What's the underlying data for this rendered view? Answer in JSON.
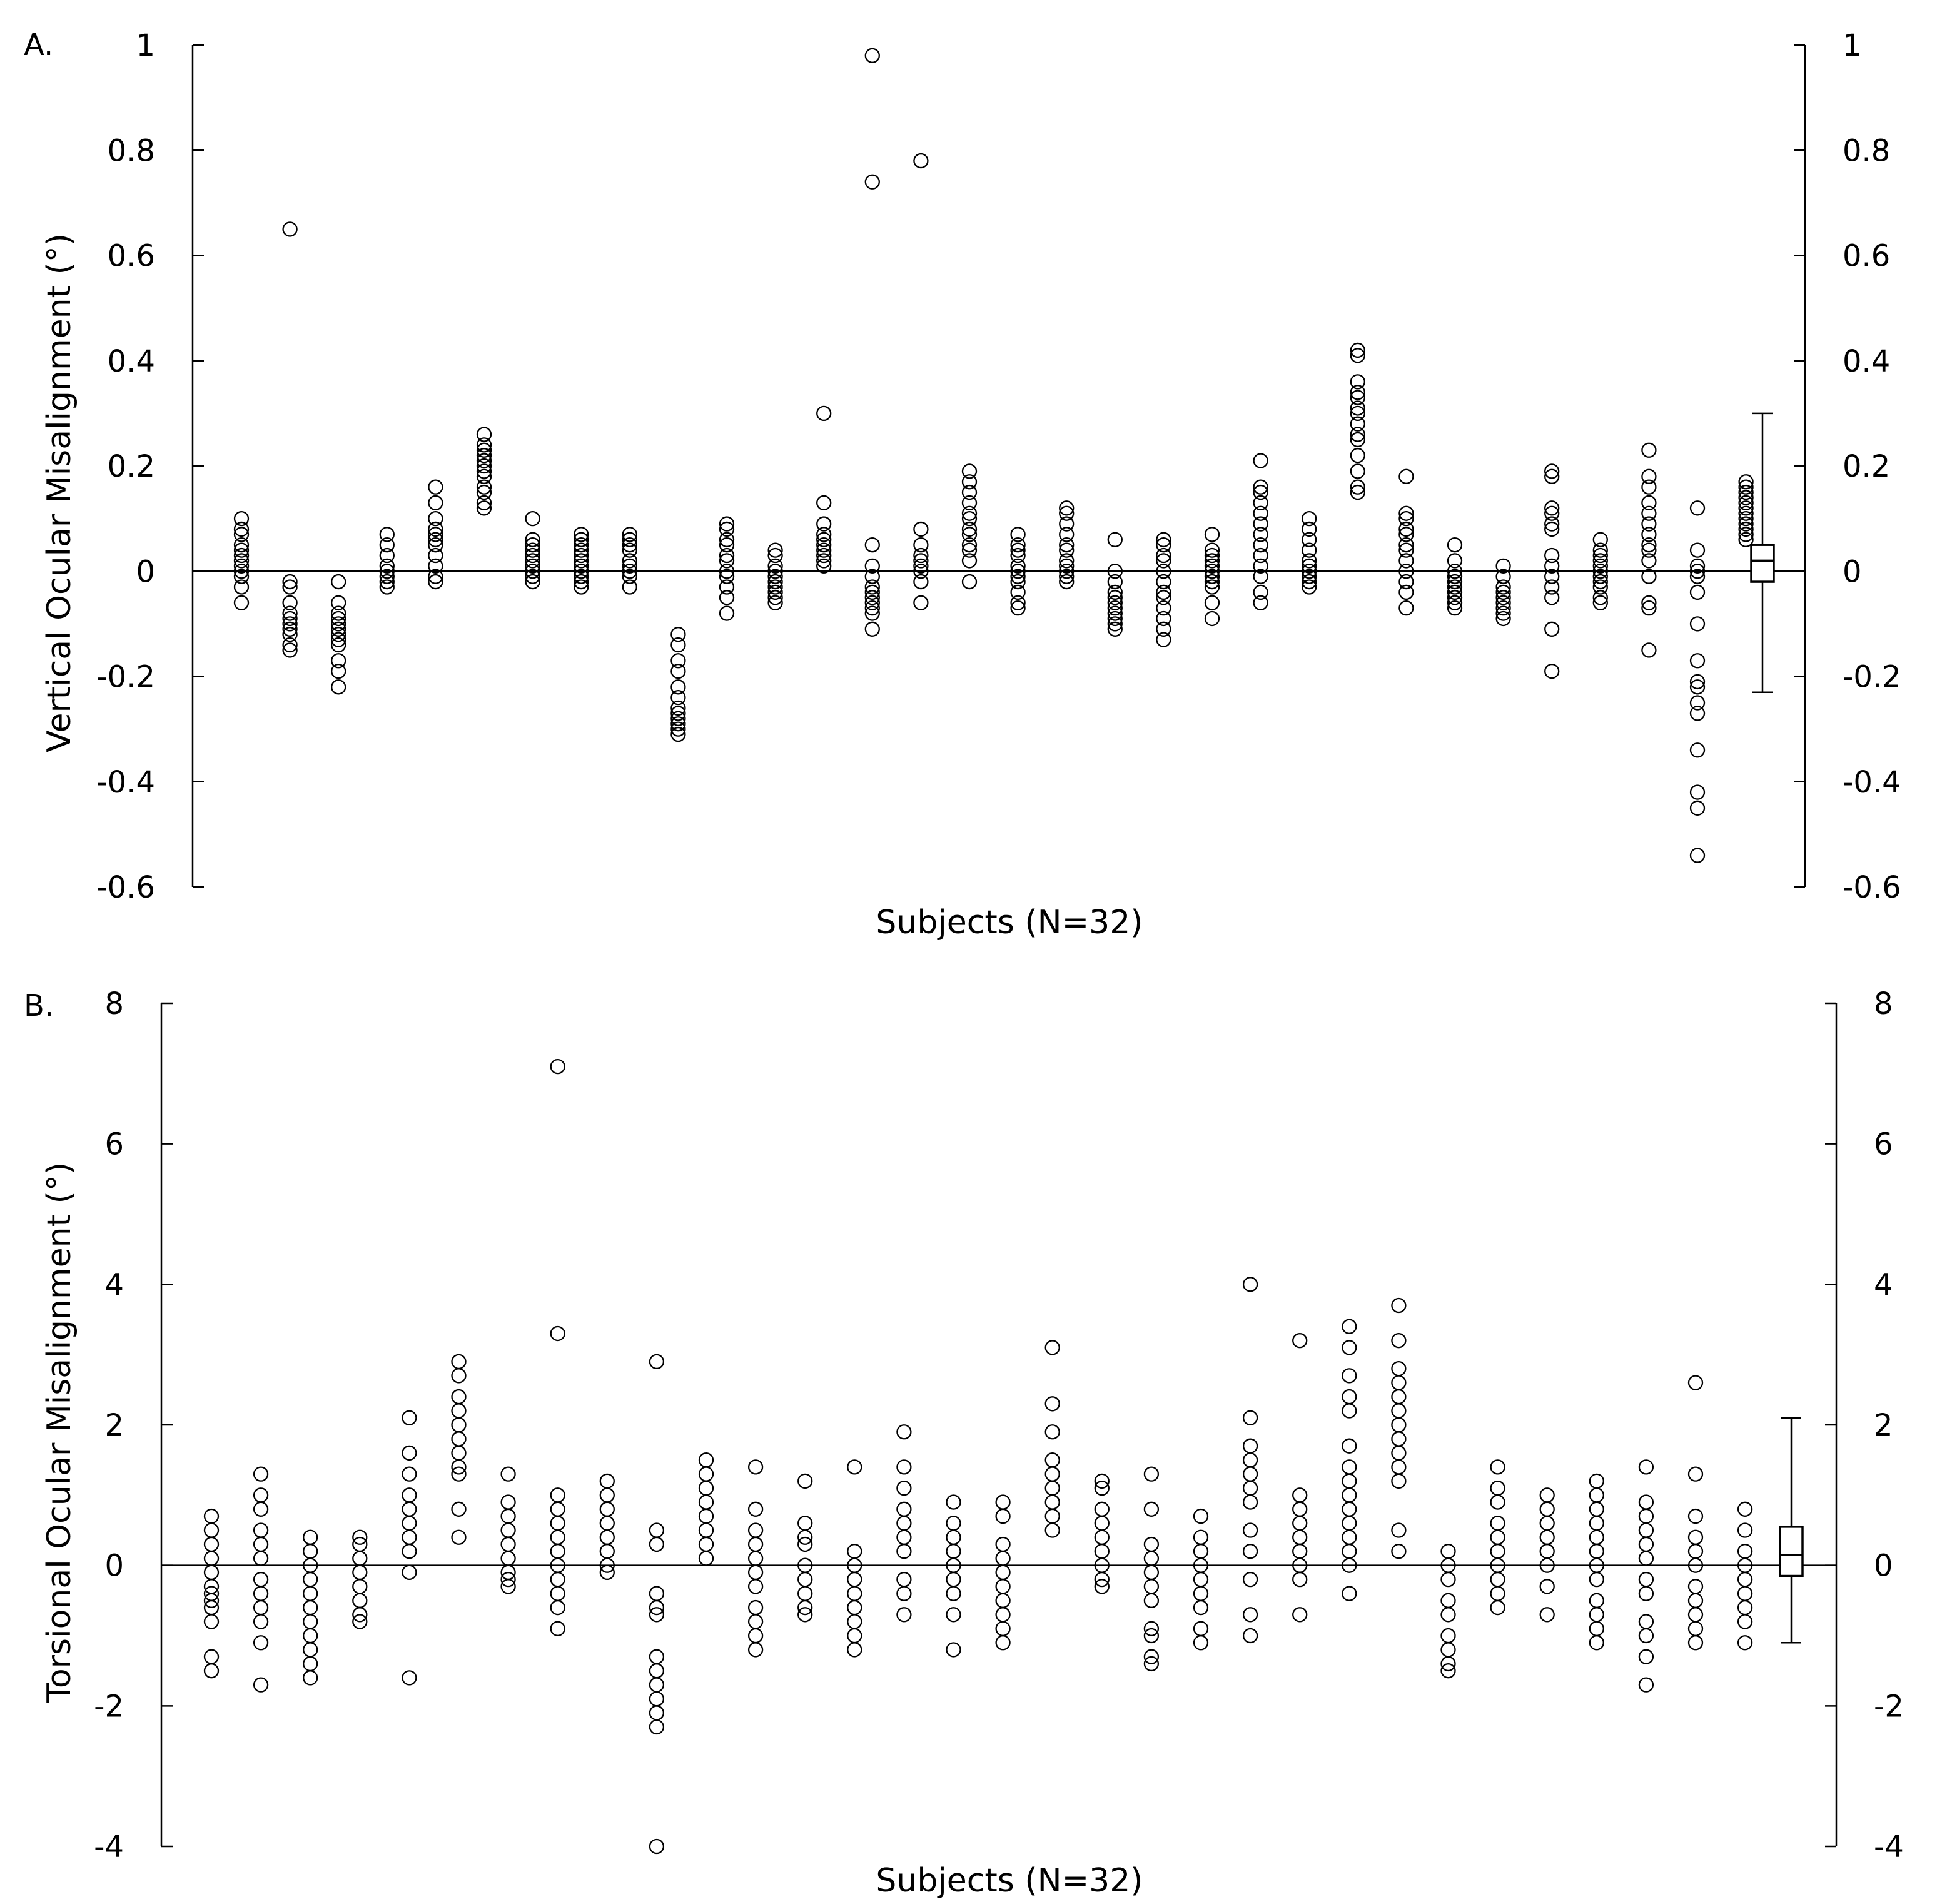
{
  "chart_data": [
    {
      "type": "scatter",
      "panel_label": "A.",
      "ylabel": "Vertical Ocular Misalignment (°)",
      "xlabel": "Subjects (N=32)",
      "ylim": [
        -0.6,
        1
      ],
      "yticks": [
        "1",
        "0.8",
        "0.6",
        "0.4",
        "0.2",
        "0",
        "-0.2",
        "-0.4",
        "-0.6"
      ],
      "ytick_values": [
        1,
        0.8,
        0.6,
        0.4,
        0.2,
        0,
        -0.2,
        -0.4,
        -0.6
      ],
      "subjects": [
        [
          0.1,
          0.08,
          0.07,
          0.05,
          0.04,
          0.03,
          0.02,
          0.01,
          0.0,
          -0.01,
          -0.03,
          -0.06
        ],
        [
          0.65,
          -0.02,
          -0.03,
          -0.06,
          -0.08,
          -0.09,
          -0.1,
          -0.11,
          -0.12,
          -0.14,
          -0.15
        ],
        [
          -0.02,
          -0.06,
          -0.08,
          -0.09,
          -0.1,
          -0.11,
          -0.12,
          -0.13,
          -0.14,
          -0.17,
          -0.19,
          -0.22
        ],
        [
          0.07,
          0.05,
          0.03,
          0.01,
          0.0,
          -0.01,
          -0.02,
          -0.03
        ],
        [
          0.16,
          0.13,
          0.1,
          0.08,
          0.07,
          0.06,
          0.05,
          0.03,
          0.01,
          -0.01,
          -0.02
        ],
        [
          0.26,
          0.24,
          0.23,
          0.22,
          0.21,
          0.2,
          0.19,
          0.18,
          0.16,
          0.15,
          0.13,
          0.12
        ],
        [
          0.1,
          0.06,
          0.05,
          0.04,
          0.03,
          0.02,
          0.01,
          0.0,
          -0.01,
          -0.02
        ],
        [
          0.07,
          0.06,
          0.05,
          0.04,
          0.03,
          0.02,
          0.01,
          0.0,
          -0.01,
          -0.02,
          -0.03
        ],
        [
          0.07,
          0.06,
          0.05,
          0.04,
          0.02,
          0.01,
          0.0,
          -0.01,
          -0.03
        ],
        [
          -0.12,
          -0.14,
          -0.17,
          -0.19,
          -0.22,
          -0.24,
          -0.26,
          -0.27,
          -0.28,
          -0.29,
          -0.3,
          -0.31
        ],
        [
          0.09,
          0.08,
          0.06,
          0.05,
          0.03,
          0.02,
          0.0,
          -0.01,
          -0.03,
          -0.05,
          -0.08
        ],
        [
          0.04,
          0.03,
          0.01,
          0.0,
          -0.01,
          -0.02,
          -0.03,
          -0.04,
          -0.05,
          -0.06
        ],
        [
          0.3,
          0.13,
          0.09,
          0.07,
          0.06,
          0.05,
          0.04,
          0.03,
          0.02,
          0.01
        ],
        [
          0.98,
          0.74,
          0.05,
          0.01,
          -0.01,
          -0.03,
          -0.04,
          -0.05,
          -0.06,
          -0.07,
          -0.08,
          -0.11
        ],
        [
          0.78,
          0.08,
          0.05,
          0.03,
          0.02,
          0.01,
          0.0,
          -0.02,
          -0.06
        ],
        [
          0.19,
          0.17,
          0.15,
          0.13,
          0.11,
          0.1,
          0.08,
          0.07,
          0.05,
          0.04,
          0.02,
          -0.02
        ],
        [
          0.07,
          0.05,
          0.04,
          0.03,
          0.01,
          0.0,
          -0.01,
          -0.02,
          -0.04,
          -0.06,
          -0.07
        ],
        [
          0.12,
          0.11,
          0.09,
          0.07,
          0.05,
          0.04,
          0.02,
          0.01,
          0.0,
          -0.01,
          -0.02
        ],
        [
          0.06,
          0.0,
          -0.02,
          -0.04,
          -0.05,
          -0.06,
          -0.07,
          -0.08,
          -0.09,
          -0.1,
          -0.11
        ],
        [
          0.06,
          0.05,
          0.03,
          0.02,
          0.0,
          -0.02,
          -0.04,
          -0.05,
          -0.07,
          -0.09,
          -0.11,
          -0.13
        ],
        [
          0.07,
          0.04,
          0.03,
          0.02,
          0.01,
          0.0,
          -0.01,
          -0.02,
          -0.03,
          -0.06,
          -0.09
        ],
        [
          0.21,
          0.16,
          0.15,
          0.13,
          0.11,
          0.09,
          0.07,
          0.05,
          0.03,
          0.01,
          -0.01,
          -0.04,
          -0.06
        ],
        [
          0.1,
          0.08,
          0.06,
          0.04,
          0.02,
          0.01,
          0.0,
          -0.01,
          -0.02,
          -0.03
        ],
        [
          0.42,
          0.41,
          0.36,
          0.34,
          0.33,
          0.31,
          0.3,
          0.28,
          0.26,
          0.25,
          0.22,
          0.19,
          0.16,
          0.15
        ],
        [
          0.18,
          0.11,
          0.1,
          0.08,
          0.07,
          0.05,
          0.04,
          0.02,
          0.0,
          -0.02,
          -0.04,
          -0.07
        ],
        [
          0.05,
          0.02,
          0.0,
          -0.01,
          -0.02,
          -0.03,
          -0.04,
          -0.05,
          -0.06,
          -0.07
        ],
        [
          0.01,
          -0.01,
          -0.03,
          -0.04,
          -0.05,
          -0.06,
          -0.07,
          -0.08,
          -0.09
        ],
        [
          0.19,
          0.18,
          0.12,
          0.11,
          0.09,
          0.08,
          0.03,
          0.01,
          -0.01,
          -0.03,
          -0.05,
          -0.11,
          -0.19
        ],
        [
          0.06,
          0.04,
          0.03,
          0.02,
          0.01,
          0.0,
          -0.01,
          -0.02,
          -0.03,
          -0.05,
          -0.06
        ],
        [
          0.23,
          0.18,
          0.16,
          0.13,
          0.11,
          0.09,
          0.07,
          0.05,
          0.04,
          0.02,
          -0.01,
          -0.06,
          -0.07,
          -0.15
        ],
        [
          0.12,
          0.04,
          0.01,
          0.0,
          -0.01,
          -0.04,
          -0.1,
          -0.17,
          -0.21,
          -0.22,
          -0.25,
          -0.27,
          -0.34,
          -0.42,
          -0.45,
          -0.54
        ],
        [
          0.17,
          0.16,
          0.15,
          0.14,
          0.13,
          0.12,
          0.11,
          0.1,
          0.09,
          0.08,
          0.07,
          0.06
        ]
      ],
      "summary_box": {
        "whisker_low": -0.23,
        "q1": -0.02,
        "median": 0.02,
        "q3": 0.05,
        "whisker_high": 0.3
      }
    },
    {
      "type": "scatter",
      "panel_label": "B.",
      "ylabel": "Torsional Ocular Misalignment (°)",
      "xlabel": "Subjects (N=32)",
      "ylim": [
        -4,
        8
      ],
      "yticks": [
        "8",
        "6",
        "4",
        "2",
        "0",
        "-2",
        "-4"
      ],
      "ytick_values": [
        8,
        6,
        4,
        2,
        0,
        -2,
        -4
      ],
      "subjects": [
        [
          0.7,
          0.5,
          0.3,
          0.1,
          -0.1,
          -0.3,
          -0.4,
          -0.5,
          -0.6,
          -0.8,
          -1.3,
          -1.5
        ],
        [
          1.3,
          1.0,
          0.8,
          0.5,
          0.3,
          0.1,
          -0.2,
          -0.4,
          -0.6,
          -0.8,
          -1.1,
          -1.7
        ],
        [
          0.4,
          0.2,
          0.0,
          -0.2,
          -0.4,
          -0.6,
          -0.8,
          -1.0,
          -1.2,
          -1.4,
          -1.6
        ],
        [
          0.4,
          0.3,
          0.1,
          -0.1,
          -0.3,
          -0.5,
          -0.7,
          -0.8
        ],
        [
          2.1,
          1.6,
          1.3,
          1.0,
          0.8,
          0.6,
          0.4,
          0.2,
          -0.1,
          -1.6
        ],
        [
          2.9,
          2.7,
          2.4,
          2.2,
          2.0,
          1.8,
          1.6,
          1.4,
          1.3,
          0.8,
          0.4
        ],
        [
          1.3,
          0.9,
          0.7,
          0.5,
          0.3,
          0.1,
          -0.1,
          -0.2,
          -0.3
        ],
        [
          7.1,
          3.3,
          1.0,
          0.8,
          0.6,
          0.4,
          0.2,
          0.0,
          -0.2,
          -0.4,
          -0.6,
          -0.9
        ],
        [
          1.2,
          1.0,
          0.8,
          0.6,
          0.4,
          0.2,
          0.0,
          -0.1
        ],
        [
          2.9,
          0.5,
          0.3,
          -0.4,
          -0.6,
          -0.7,
          -1.3,
          -1.5,
          -1.7,
          -1.9,
          -2.1,
          -2.3,
          -4.0
        ],
        [
          1.5,
          1.3,
          1.1,
          0.9,
          0.7,
          0.5,
          0.3,
          0.1
        ],
        [
          1.4,
          0.8,
          0.5,
          0.3,
          0.1,
          -0.1,
          -0.3,
          -0.6,
          -0.8,
          -1.0,
          -1.2
        ],
        [
          1.2,
          0.6,
          0.4,
          0.3,
          0.0,
          -0.2,
          -0.4,
          -0.6,
          -0.7
        ],
        [
          1.4,
          0.2,
          0.0,
          -0.2,
          -0.4,
          -0.6,
          -0.8,
          -1.0,
          -1.2
        ],
        [
          1.9,
          1.4,
          1.1,
          0.8,
          0.6,
          0.4,
          0.2,
          -0.2,
          -0.4,
          -0.7
        ],
        [
          0.9,
          0.6,
          0.4,
          0.2,
          0.0,
          -0.2,
          -0.4,
          -0.7,
          -1.2
        ],
        [
          0.9,
          0.7,
          0.3,
          0.1,
          -0.1,
          -0.3,
          -0.5,
          -0.7,
          -0.9,
          -1.1
        ],
        [
          3.1,
          2.3,
          1.9,
          1.5,
          1.3,
          1.1,
          0.9,
          0.7,
          0.5
        ],
        [
          1.2,
          1.1,
          0.8,
          0.6,
          0.4,
          0.2,
          0.0,
          -0.2,
          -0.3
        ],
        [
          1.3,
          0.8,
          0.3,
          0.1,
          -0.1,
          -0.3,
          -0.5,
          -0.9,
          -1.0,
          -1.3,
          -1.4
        ],
        [
          0.7,
          0.4,
          0.2,
          0.0,
          -0.2,
          -0.4,
          -0.6,
          -0.9,
          -1.1
        ],
        [
          4.0,
          2.1,
          1.7,
          1.5,
          1.3,
          1.1,
          0.9,
          0.5,
          0.2,
          -0.2,
          -0.7,
          -1.0
        ],
        [
          3.2,
          1.0,
          0.8,
          0.6,
          0.4,
          0.2,
          0.0,
          -0.2,
          -0.7
        ],
        [
          3.4,
          3.1,
          2.7,
          2.4,
          2.2,
          1.7,
          1.4,
          1.2,
          1.0,
          0.8,
          0.6,
          0.4,
          0.2,
          0.0,
          -0.4
        ],
        [
          3.7,
          3.2,
          2.8,
          2.6,
          2.4,
          2.2,
          2.0,
          1.8,
          1.6,
          1.4,
          1.2,
          0.5,
          0.2
        ],
        [
          0.2,
          0.0,
          -0.2,
          -0.5,
          -0.7,
          -1.0,
          -1.2,
          -1.4,
          -1.5
        ],
        [
          1.4,
          1.1,
          0.9,
          0.6,
          0.4,
          0.2,
          0.0,
          -0.2,
          -0.4,
          -0.6
        ],
        [
          1.0,
          0.8,
          0.6,
          0.4,
          0.2,
          0.0,
          -0.3,
          -0.7
        ],
        [
          1.2,
          1.0,
          0.8,
          0.6,
          0.4,
          0.2,
          0.0,
          -0.2,
          -0.5,
          -0.7,
          -0.9,
          -1.1
        ],
        [
          1.4,
          0.9,
          0.7,
          0.5,
          0.3,
          0.1,
          -0.2,
          -0.4,
          -0.8,
          -1.0,
          -1.3,
          -1.7
        ],
        [
          2.6,
          1.3,
          0.7,
          0.4,
          0.2,
          0.0,
          -0.3,
          -0.5,
          -0.7,
          -0.9,
          -1.1
        ],
        [
          0.8,
          0.5,
          0.2,
          0.0,
          -0.2,
          -0.4,
          -0.6,
          -0.8,
          -1.1
        ]
      ],
      "summary_box": {
        "whisker_low": -1.1,
        "q1": -0.15,
        "median": 0.15,
        "q3": 0.55,
        "whisker_high": 2.1
      }
    }
  ]
}
